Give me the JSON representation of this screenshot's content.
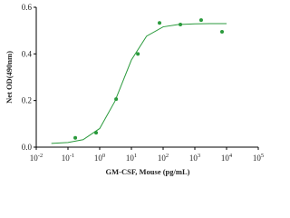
{
  "chart_data": {
    "type": "scatter",
    "x_label": "GM-CSF, Mouse (pg/mL)",
    "y_label": "Net OD(490nm)",
    "xscale": "log",
    "color": "#2a9a3c",
    "points": {
      "x": [
        0.17,
        0.77,
        3.3,
        16,
        77,
        350,
        1580,
        7200
      ],
      "values": [
        0.04,
        0.062,
        0.206,
        0.4,
        0.533,
        0.526,
        0.545,
        0.495
      ]
    },
    "curve": {
      "x": [
        0.03,
        0.1,
        0.3,
        1,
        3,
        10,
        30,
        100,
        300,
        1000,
        3000,
        10000
      ],
      "values": [
        0.016,
        0.02,
        0.032,
        0.08,
        0.196,
        0.374,
        0.476,
        0.516,
        0.526,
        0.529,
        0.53,
        0.53
      ]
    },
    "xlim": [
      0.01,
      100000
    ],
    "xticks": [
      {
        "value": 0.01,
        "label": "10-2"
      },
      {
        "value": 0.1,
        "label": "10-1"
      },
      {
        "value": 1,
        "label": "100"
      },
      {
        "value": 10,
        "label": "101"
      },
      {
        "value": 100,
        "label": "102"
      },
      {
        "value": 1000,
        "label": "103"
      },
      {
        "value": 10000,
        "label": "104"
      },
      {
        "value": 100000,
        "label": "105"
      }
    ],
    "ylim": [
      0,
      0.6
    ],
    "yticks": [
      {
        "value": 0,
        "label": "0.0"
      },
      0.2,
      0.4,
      0.6
    ]
  }
}
